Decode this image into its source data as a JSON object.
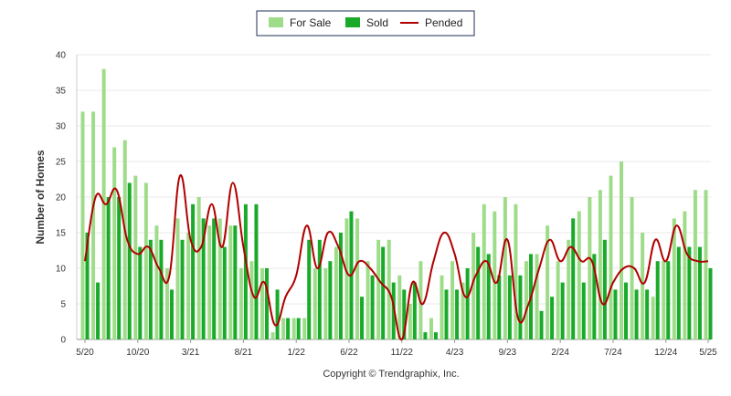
{
  "chart_data": {
    "type": "bar",
    "ylabel": "Number of Homes",
    "ylim": [
      0,
      40
    ],
    "yticks": [
      0,
      5,
      10,
      15,
      20,
      25,
      30,
      35,
      40
    ],
    "grid": true,
    "legend_position": "top-center",
    "xtick_labels": [
      "5/20",
      "10/20",
      "3/21",
      "8/21",
      "1/22",
      "6/22",
      "11/22",
      "4/23",
      "9/23",
      "2/24",
      "7/24",
      "12/24",
      "5/25"
    ],
    "colors": {
      "for_sale": "#9fdc8a",
      "sold": "#1aaa2a",
      "pended": "#b00000"
    },
    "series": [
      {
        "name": "For Sale",
        "values": [
          32,
          32,
          38,
          27,
          28,
          23,
          22,
          16,
          10,
          17,
          15,
          20,
          16,
          17,
          16,
          10,
          11,
          10,
          1,
          3,
          3,
          3,
          10,
          10,
          13,
          17,
          17,
          11,
          14,
          14,
          9,
          5,
          11,
          3,
          9,
          11,
          8,
          15,
          19,
          18,
          20,
          19,
          11,
          12,
          16,
          11,
          14,
          18,
          20,
          21,
          23,
          25,
          20,
          15,
          6,
          11,
          17,
          18,
          21,
          21
        ]
      },
      {
        "name": "Sold",
        "values": [
          15,
          8,
          20,
          20,
          22,
          13,
          14,
          14,
          7,
          14,
          19,
          17,
          17,
          13,
          16,
          19,
          19,
          10,
          7,
          3,
          3,
          14,
          14,
          11,
          15,
          18,
          6,
          9,
          13,
          8,
          7,
          8,
          1,
          1,
          7,
          7,
          10,
          13,
          12,
          9,
          9,
          9,
          12,
          4,
          6,
          8,
          17,
          8,
          12,
          14,
          7,
          8,
          7,
          7,
          11,
          11,
          13,
          13,
          13,
          10
        ]
      },
      {
        "name": "Pended",
        "values": [
          11,
          20,
          19,
          21,
          14,
          12,
          13,
          10,
          9,
          23,
          14,
          13,
          19,
          13,
          22,
          13,
          6,
          8,
          2,
          6,
          9,
          16,
          10,
          15,
          13,
          9,
          11,
          10,
          8,
          6,
          0,
          8,
          5,
          11,
          15,
          12,
          6,
          9,
          11,
          8,
          14,
          3,
          5,
          10,
          14,
          11,
          13,
          11,
          11,
          5,
          8,
          10,
          10,
          8,
          14,
          11,
          16,
          12,
          11,
          11
        ]
      }
    ]
  },
  "footer": {
    "copyright": "Copyright © Trendgraphix, Inc."
  }
}
